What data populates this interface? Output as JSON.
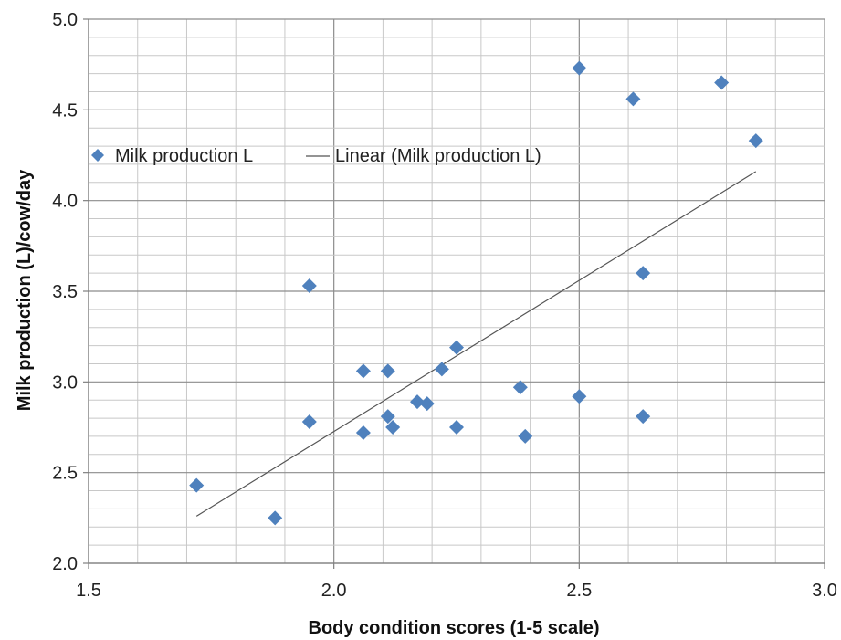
{
  "chart_data": {
    "type": "scatter",
    "title": "",
    "xlabel": "Body condition scores (1-5 scale)",
    "ylabel": "Milk production (L)/cow/day",
    "xlim": [
      1.5,
      3.0
    ],
    "ylim": [
      2.0,
      5.0
    ],
    "x_major_ticks": [
      "1.5",
      "2.0",
      "2.5",
      "3.0"
    ],
    "y_major_ticks": [
      "2.0",
      "2.5",
      "3.0",
      "3.5",
      "4.0",
      "4.5",
      "5.0"
    ],
    "x_minor_step": 0.1,
    "y_minor_step": 0.1,
    "grid": true,
    "legend_position": "upper-left",
    "legend_items": [
      "Milk production L",
      "Linear (Milk production L)"
    ],
    "marker_color": "#4F81BD",
    "trendline_color": "#555555",
    "series": [
      {
        "name": "Milk production L",
        "marker": "diamond",
        "points": [
          {
            "x": 1.72,
            "y": 2.43
          },
          {
            "x": 1.88,
            "y": 2.25
          },
          {
            "x": 1.95,
            "y": 3.53
          },
          {
            "x": 1.95,
            "y": 2.78
          },
          {
            "x": 2.06,
            "y": 3.06
          },
          {
            "x": 2.06,
            "y": 2.72
          },
          {
            "x": 2.11,
            "y": 3.06
          },
          {
            "x": 2.11,
            "y": 2.81
          },
          {
            "x": 2.12,
            "y": 2.75
          },
          {
            "x": 2.17,
            "y": 2.89
          },
          {
            "x": 2.19,
            "y": 2.88
          },
          {
            "x": 2.22,
            "y": 3.07
          },
          {
            "x": 2.25,
            "y": 3.19
          },
          {
            "x": 2.25,
            "y": 2.75
          },
          {
            "x": 2.38,
            "y": 2.97
          },
          {
            "x": 2.39,
            "y": 2.7
          },
          {
            "x": 2.5,
            "y": 4.73
          },
          {
            "x": 2.5,
            "y": 2.92
          },
          {
            "x": 2.61,
            "y": 4.56
          },
          {
            "x": 2.63,
            "y": 3.6
          },
          {
            "x": 2.63,
            "y": 2.81
          },
          {
            "x": 2.79,
            "y": 4.65
          },
          {
            "x": 2.86,
            "y": 4.33
          }
        ]
      },
      {
        "name": "Linear (Milk production L)",
        "type": "trendline",
        "points": [
          {
            "x": 1.72,
            "y": 2.26
          },
          {
            "x": 2.86,
            "y": 4.16
          }
        ]
      }
    ]
  }
}
